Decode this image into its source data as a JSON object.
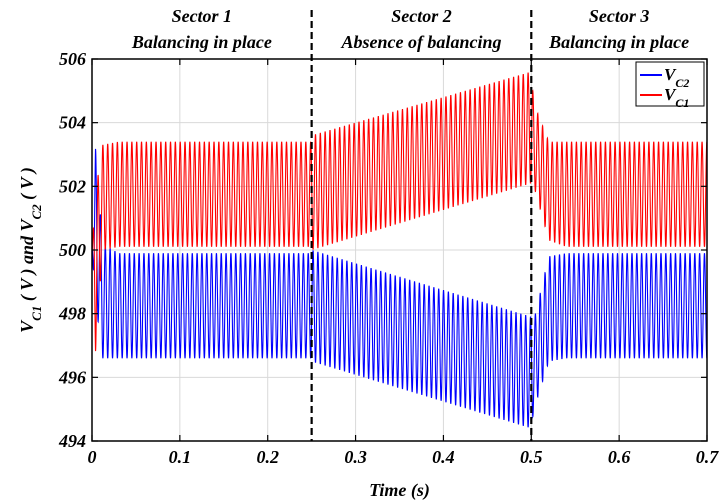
{
  "chart_data": {
    "type": "line",
    "xlabel": "Time (s)",
    "ylabel": {
      "parts": [
        {
          "text": "V",
          "sub": false
        },
        {
          "text": "C1",
          "sub": true
        },
        {
          "text": " ( V )  and  V",
          "sub": false
        },
        {
          "text": "C2",
          "sub": true
        },
        {
          "text": " ( V )",
          "sub": false
        }
      ]
    },
    "xlim": [
      0,
      0.7
    ],
    "ylim": [
      494,
      506
    ],
    "xticks": [
      0,
      0.1,
      0.2,
      0.3,
      0.4,
      0.5,
      0.6,
      0.7
    ],
    "xtick_labels": [
      "0",
      "0.1",
      "0.2",
      "0.3",
      "0.4",
      "0.5",
      "0.6",
      "0.7"
    ],
    "yticks": [
      494,
      496,
      498,
      500,
      502,
      504,
      506
    ],
    "ytick_labels": [
      "494",
      "496",
      "498",
      "500",
      "502",
      "504",
      "506"
    ],
    "grid": true,
    "legend_position": "top-right",
    "vertical_markers": [
      0.25,
      0.5
    ],
    "sectors": [
      {
        "title": "Sector 1",
        "subtitle": "Balancing in place",
        "x_start": 0,
        "x_end": 0.25
      },
      {
        "title": "Sector 2",
        "subtitle": "Absence of balancing",
        "x_start": 0.25,
        "x_end": 0.5
      },
      {
        "title": "Sector 3",
        "subtitle": "Balancing in place",
        "x_start": 0.5,
        "x_end": 0.7
      }
    ],
    "series": [
      {
        "name": "V",
        "name_sub": "C2",
        "color": "#0000ff",
        "oscillation_period": 0.0055,
        "envelope_points": [
          {
            "x": 0,
            "y_min": 500,
            "y_max": 500
          },
          {
            "x": 0.004,
            "y_min": 498.4,
            "y_max": 503.2
          },
          {
            "x": 0.012,
            "y_min": 496.6,
            "y_max": 500.2
          },
          {
            "x": 0.03,
            "y_min": 496.6,
            "y_max": 499.9
          },
          {
            "x": 0.249,
            "y_min": 496.6,
            "y_max": 499.9
          },
          {
            "x": 0.25,
            "y_min": 496.5,
            "y_max": 500.0
          },
          {
            "x": 0.5,
            "y_min": 494.4,
            "y_max": 497.9
          },
          {
            "x": 0.503,
            "y_min": 495.0,
            "y_max": 497.8
          },
          {
            "x": 0.52,
            "y_min": 496.5,
            "y_max": 499.8
          },
          {
            "x": 0.54,
            "y_min": 496.6,
            "y_max": 499.9
          },
          {
            "x": 0.7,
            "y_min": 496.6,
            "y_max": 499.9
          }
        ]
      },
      {
        "name": "V",
        "name_sub": "C1",
        "color": "#ff0000",
        "oscillation_period": 0.0055,
        "envelope_points": [
          {
            "x": 0,
            "y_min": 500,
            "y_max": 500
          },
          {
            "x": 0.004,
            "y_min": 496.8,
            "y_max": 501.8
          },
          {
            "x": 0.012,
            "y_min": 500.0,
            "y_max": 503.3
          },
          {
            "x": 0.03,
            "y_min": 500.1,
            "y_max": 503.4
          },
          {
            "x": 0.249,
            "y_min": 500.1,
            "y_max": 503.4
          },
          {
            "x": 0.25,
            "y_min": 500.0,
            "y_max": 503.6
          },
          {
            "x": 0.5,
            "y_min": 502.1,
            "y_max": 505.6
          },
          {
            "x": 0.503,
            "y_min": 502.0,
            "y_max": 504.6
          },
          {
            "x": 0.52,
            "y_min": 500.3,
            "y_max": 503.4
          },
          {
            "x": 0.54,
            "y_min": 500.1,
            "y_max": 503.4
          },
          {
            "x": 0.7,
            "y_min": 500.1,
            "y_max": 503.4
          }
        ]
      }
    ]
  }
}
